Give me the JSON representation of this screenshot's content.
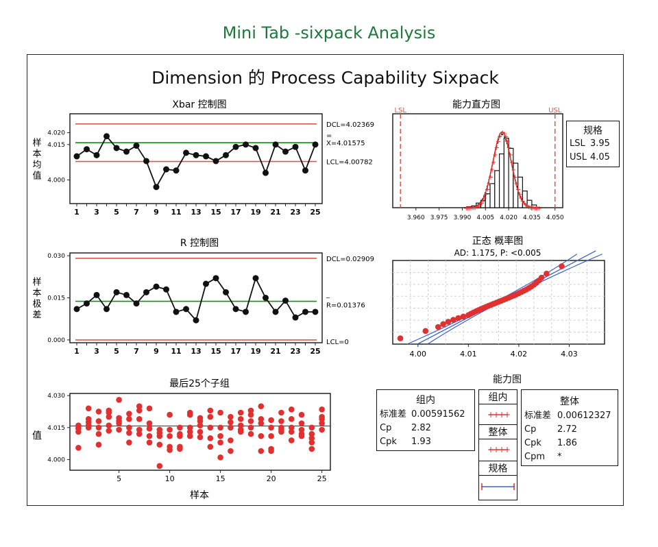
{
  "heading": "Mini Tab -sixpack Analysis",
  "main_title": "Dimension 的 Process Capability Sixpack",
  "colors": {
    "accent": "#1b7a3a",
    "limit": "#d9584a",
    "center": "#1a8a1a",
    "point": "#e03030",
    "fit": "#3a62c8"
  },
  "chart_data": [
    {
      "id": "xbar",
      "type": "line",
      "title": "Xbar 控制图",
      "ylabel": "样本均值",
      "x": [
        1,
        2,
        3,
        4,
        5,
        6,
        7,
        8,
        9,
        10,
        11,
        12,
        13,
        14,
        15,
        16,
        17,
        18,
        19,
        20,
        21,
        22,
        23,
        24,
        25
      ],
      "values": [
        4.01,
        4.013,
        4.0105,
        4.0185,
        4.0135,
        4.012,
        4.0145,
        4.008,
        3.997,
        4.0045,
        4.004,
        4.0115,
        4.0105,
        4.01,
        4.008,
        4.0105,
        4.014,
        4.015,
        4.0135,
        4.003,
        4.015,
        4.012,
        4.014,
        4.004,
        4.015
      ],
      "ylim": [
        3.99,
        4.028
      ],
      "yticks": [
        "4.000",
        "4.015",
        "4.020"
      ],
      "ytick_values": [
        4.0,
        4.015,
        4.02
      ],
      "xticks": [
        "1",
        "3",
        "5",
        "7",
        "9",
        "11",
        "13",
        "15",
        "17",
        "19",
        "21",
        "23",
        "25"
      ],
      "ucl": 4.02369,
      "center": 4.01575,
      "lcl": 4.00782,
      "ucl_label": "DCL=4.02369",
      "center_label": "X=4.01575",
      "center_bar": "=",
      "lcl_label": "LCL=4.00782"
    },
    {
      "id": "range",
      "type": "line",
      "title": "R 控制图",
      "ylabel": "样本极差",
      "x": [
        1,
        2,
        3,
        4,
        5,
        6,
        7,
        8,
        9,
        10,
        11,
        12,
        13,
        14,
        15,
        16,
        17,
        18,
        19,
        20,
        21,
        22,
        23,
        24,
        25
      ],
      "values": [
        0.011,
        0.013,
        0.016,
        0.011,
        0.017,
        0.016,
        0.013,
        0.017,
        0.019,
        0.018,
        0.01,
        0.011,
        0.007,
        0.02,
        0.022,
        0.017,
        0.011,
        0.01,
        0.022,
        0.015,
        0.01,
        0.014,
        0.008,
        0.01,
        0.01
      ],
      "ylim": [
        -0.001,
        0.031
      ],
      "yticks": [
        "0.000",
        "0.015",
        "0.030"
      ],
      "ytick_values": [
        0.0,
        0.015,
        0.03
      ],
      "xticks": [
        "1",
        "3",
        "5",
        "7",
        "9",
        "11",
        "13",
        "15",
        "17",
        "19",
        "21",
        "23",
        "25"
      ],
      "ucl": 0.02909,
      "center": 0.01376,
      "lcl": 0.0,
      "ucl_label": "DCL=0.02909",
      "center_label": "R=0.01376",
      "center_bar": "_",
      "lcl_label": "LCL=0"
    },
    {
      "id": "last25",
      "type": "scatter",
      "title": "最后25个子组",
      "xlabel": "样本",
      "ylabel": "值",
      "ylim": [
        3.995,
        4.031
      ],
      "yticks": [
        "4.000",
        "4.015",
        "4.030"
      ],
      "ytick_values": [
        4.0,
        4.015,
        4.03
      ],
      "xticks": [
        "5",
        "10",
        "15",
        "20",
        "25"
      ],
      "xtick_values": [
        5,
        10,
        15,
        20,
        25
      ],
      "center": 4.01575,
      "subgroups": [
        [
          4.0055,
          4.013,
          4.0145,
          4.016,
          4.015
        ],
        [
          4.024,
          4.019,
          4.016,
          4.015,
          4.0175
        ],
        [
          4.007,
          4.012,
          4.015,
          4.018,
          4.0225
        ],
        [
          4.023,
          4.022,
          4.02,
          4.016,
          4.0135
        ],
        [
          4.028,
          4.018,
          4.017,
          4.014,
          4.0195
        ],
        [
          4.008,
          4.015,
          4.019,
          4.0215,
          4.0125
        ],
        [
          4.025,
          4.023,
          4.019,
          4.014,
          4.012
        ],
        [
          4.008,
          4.011,
          4.0145,
          4.017,
          4.024
        ],
        [
          3.997,
          4.007,
          4.011,
          4.014,
          4.0125
        ],
        [
          4.0045,
          4.006,
          4.011,
          4.014,
          4.021
        ],
        [
          4.005,
          4.006,
          4.011,
          4.015,
          4.012
        ],
        [
          4.011,
          4.013,
          4.015,
          4.021,
          4.022
        ],
        [
          4.0105,
          4.013,
          4.016,
          4.018,
          4.0195
        ],
        [
          4.006,
          4.01,
          4.015,
          4.02,
          4.023
        ],
        [
          4.001,
          4.008,
          4.011,
          4.015,
          4.022
        ],
        [
          4.004,
          4.009,
          4.015,
          4.02,
          4.0175
        ],
        [
          4.014,
          4.016,
          4.019,
          4.022,
          4.013
        ],
        [
          4.012,
          4.015,
          4.018,
          4.023,
          4.021
        ],
        [
          4.004,
          4.011,
          4.019,
          4.025,
          4.017
        ],
        [
          4.004,
          4.005,
          4.011,
          4.015,
          4.0185
        ],
        [
          4.013,
          4.015,
          4.018,
          4.022,
          4.014
        ],
        [
          4.009,
          4.013,
          4.015,
          4.019,
          4.0235
        ],
        [
          4.011,
          4.014,
          4.017,
          4.021,
          4.012
        ],
        [
          4.005,
          4.008,
          4.01,
          4.015,
          4.012
        ],
        [
          4.014,
          4.017,
          4.019,
          4.02,
          4.0235
        ]
      ]
    },
    {
      "id": "histogram",
      "type": "bar",
      "title": "能力直方图",
      "bins": [
        3.99,
        3.993,
        3.996,
        3.999,
        4.002,
        4.005,
        4.008,
        4.011,
        4.014,
        4.017,
        4.02,
        4.023,
        4.026,
        4.029,
        4.032,
        4.035,
        4.038
      ],
      "counts": [
        0,
        1,
        2,
        5,
        8,
        15,
        26,
        40,
        58,
        75,
        64,
        48,
        33,
        18,
        8,
        3,
        0
      ],
      "xlim": [
        3.945,
        4.055
      ],
      "xticks": [
        "3.960",
        "3.975",
        "3.990",
        "4.005",
        "4.020",
        "4.035",
        "4.050"
      ],
      "xtick_values": [
        3.96,
        3.975,
        3.99,
        4.005,
        4.02,
        4.035,
        4.05
      ],
      "lsl": 3.95,
      "usl": 4.05,
      "lsl_label": "LSL",
      "usl_label": "USL",
      "mean": 4.01575,
      "sd_within": 0.00591562,
      "sd_overall": 0.00612327
    },
    {
      "id": "normal_prob",
      "type": "scatter",
      "title": "正态 概率图",
      "subtitle": "AD: 1.175, P: <0.005",
      "xlim": [
        3.995,
        4.037
      ],
      "xticks": [
        "4.00",
        "4.01",
        "4.02",
        "4.03"
      ],
      "xtick_values": [
        4.0,
        4.01,
        4.02,
        4.03
      ],
      "points": [
        3.9965,
        4.0015,
        4.004,
        4.005,
        4.006,
        4.007,
        4.008,
        4.009,
        4.01,
        4.0105,
        4.011,
        4.0115,
        4.012,
        4.0125,
        4.013,
        4.0135,
        4.014,
        4.0145,
        4.015,
        4.0155,
        4.016,
        4.0165,
        4.017,
        4.0175,
        4.018,
        4.0185,
        4.019,
        4.0195,
        4.02,
        4.0205,
        4.021,
        4.0215,
        4.022,
        4.0225,
        4.023,
        4.0235,
        4.024,
        4.0245,
        4.0255,
        4.0285
      ]
    }
  ],
  "spec_box": {
    "title": "规格",
    "lsl_key": "LSL",
    "lsl_val": "3.95",
    "usl_key": "USL",
    "usl_val": "4.05"
  },
  "capability": {
    "title": "能力图",
    "within": {
      "title": "组内",
      "sd_key": "标准差",
      "sd_val": "0.00591562",
      "cp_key": "Cp",
      "cp_val": "2.82",
      "cpk_key": "Cpk",
      "cpk_val": "1.93"
    },
    "overall": {
      "title": "整体",
      "sd_key": "标准差",
      "sd_val": "0.00612327",
      "cp_key": "Cp",
      "cp_val": "2.72",
      "cpk_key": "Cpk",
      "cpk_val": "1.86",
      "cpm_key": "Cpm",
      "cpm_val": "*"
    },
    "legend": {
      "within": "组内",
      "overall": "整体",
      "spec": "规格"
    }
  }
}
